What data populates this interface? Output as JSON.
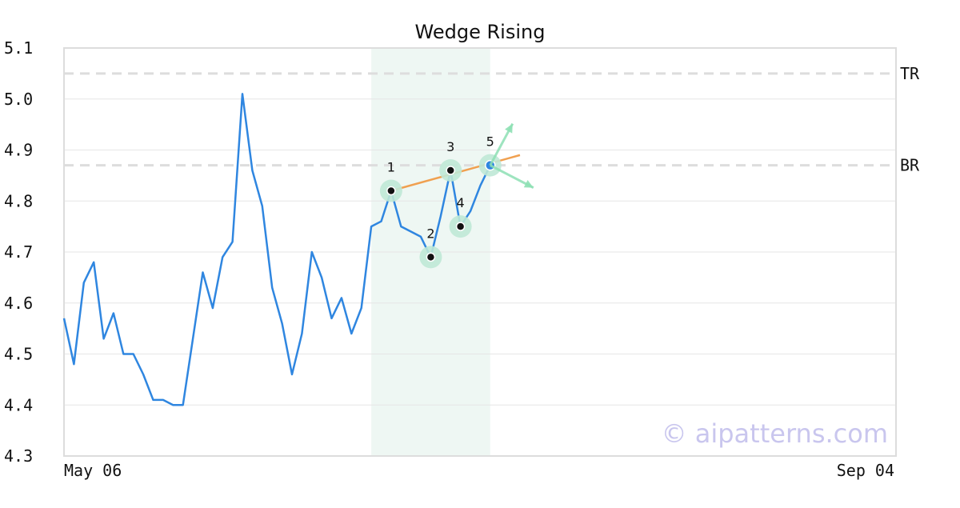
{
  "chart_data": {
    "type": "line",
    "title": "Wedge Rising",
    "xlabel": "",
    "ylabel": "",
    "ylim": [
      4.3,
      5.1
    ],
    "yticks": [
      "5.1",
      "5.0",
      "4.9",
      "4.8",
      "4.7",
      "4.6",
      "4.5",
      "4.4",
      "4.3"
    ],
    "x_tick_labels": [
      "May 06",
      "Sep 04"
    ],
    "grid": true,
    "series": [
      {
        "values": [
          4.57,
          4.48,
          4.64,
          4.68,
          4.53,
          4.58,
          4.5,
          4.5,
          4.46,
          4.41,
          4.41,
          4.4,
          4.4,
          4.53,
          4.66,
          4.59,
          4.69,
          4.72,
          5.01,
          4.86,
          4.79,
          4.63,
          4.56,
          4.46,
          4.54,
          4.7,
          4.65,
          4.57,
          4.61,
          4.54,
          4.59,
          4.75,
          4.76,
          4.82,
          4.75,
          4.74,
          4.73,
          4.69,
          4.77,
          4.86,
          4.75,
          4.78,
          4.83,
          4.87
        ]
      }
    ],
    "total_points": 85,
    "reference_lines": [
      {
        "label": "TR",
        "value": 5.05
      },
      {
        "label": "BR",
        "value": 4.87
      }
    ],
    "highlight_range": {
      "start_index": 31,
      "end_index": 43
    },
    "pattern_points": [
      {
        "label": "1",
        "index": 33,
        "value": 4.82
      },
      {
        "label": "2",
        "index": 37,
        "value": 4.69
      },
      {
        "label": "3",
        "index": 39,
        "value": 4.86
      },
      {
        "label": "4",
        "index": 40,
        "value": 4.75
      },
      {
        "label": "5",
        "index": 43,
        "value": 4.87
      }
    ],
    "trend_line": {
      "start_index": 33,
      "start_value": 4.82,
      "end_index": 46,
      "end_value": 4.89
    },
    "watermark": "© aipatterns.com",
    "colors": {
      "line": "#2f86e0",
      "trend": "#f0a050",
      "highlight": "#eef7f3",
      "marker_halo": "#bfe8d6",
      "arrow": "#8ee0b4",
      "last_point": "#2f86e0",
      "reference": "#dddddd",
      "grid": "#e6e6e6"
    }
  }
}
